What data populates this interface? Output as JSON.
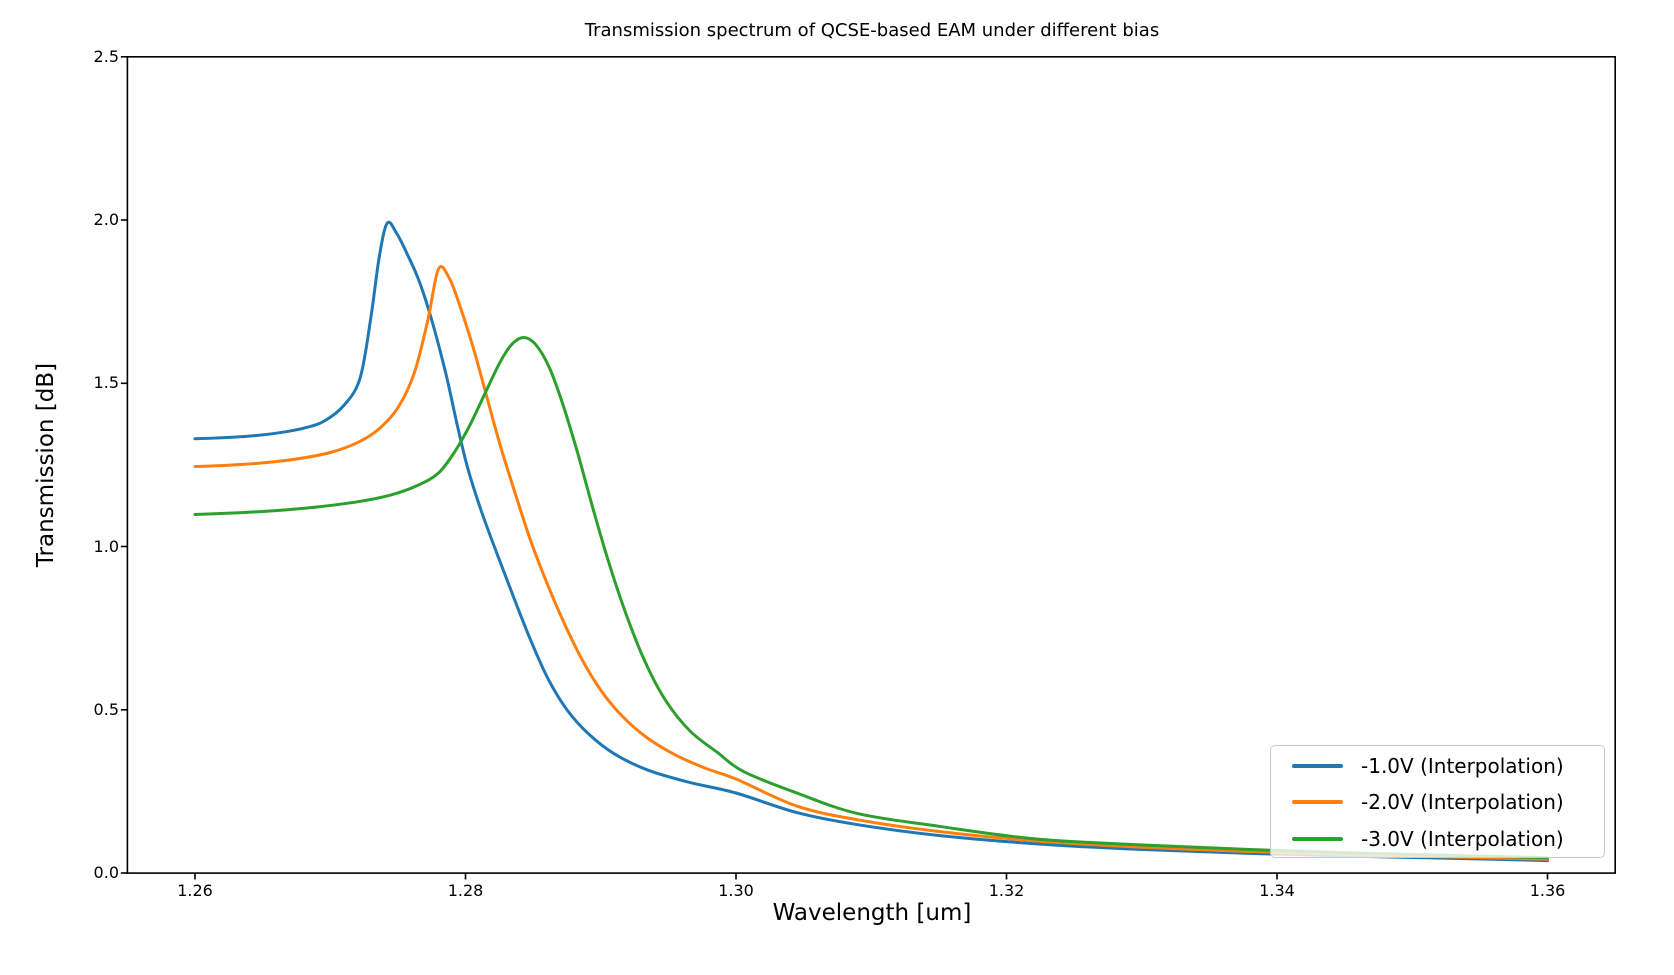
{
  "title": "Transmission spectrum of QCSE-based EAM under different bias",
  "axes": {
    "xlabel": "Wavelength [um]",
    "ylabel": "Transmission [dB]",
    "x_tick_labels": [
      "1.26",
      "1.28",
      "1.30",
      "1.32",
      "1.34",
      "1.36"
    ],
    "x_tick_values": [
      1.26,
      1.28,
      1.3,
      1.32,
      1.34,
      1.36
    ],
    "y_tick_labels": [
      "0.0",
      "0.5",
      "1.0",
      "1.5",
      "2.0",
      "2.5"
    ],
    "y_tick_values": [
      0.0,
      0.5,
      1.0,
      1.5,
      2.0,
      2.5
    ]
  },
  "chart_data": {
    "type": "line",
    "title": "Transmission spectrum of QCSE-based EAM under different bias",
    "xlabel": "Wavelength [um]",
    "ylabel": "Transmission [dB]",
    "xlim": [
      1.255,
      1.365
    ],
    "ylim": [
      0.0,
      2.5
    ],
    "grid": false,
    "legend_position": "lower right",
    "series": [
      {
        "name": "-1.0V (Interpolation)",
        "color": "#1f77b4",
        "peak": {
          "wavelength_um": 1.2742,
          "transmission_db": 1.99
        },
        "points": [
          [
            1.26,
            1.33
          ],
          [
            1.262,
            1.333
          ],
          [
            1.264,
            1.338
          ],
          [
            1.266,
            1.347
          ],
          [
            1.268,
            1.362
          ],
          [
            1.2695,
            1.383
          ],
          [
            1.271,
            1.432
          ],
          [
            1.2722,
            1.515
          ],
          [
            1.273,
            1.7
          ],
          [
            1.2736,
            1.88
          ],
          [
            1.2742,
            1.99
          ],
          [
            1.2749,
            1.96
          ],
          [
            1.2757,
            1.895
          ],
          [
            1.2766,
            1.81
          ],
          [
            1.2776,
            1.68
          ],
          [
            1.2786,
            1.52
          ],
          [
            1.2794,
            1.37
          ],
          [
            1.2802,
            1.235
          ],
          [
            1.2812,
            1.105
          ],
          [
            1.2824,
            0.97
          ],
          [
            1.2836,
            0.84
          ],
          [
            1.2848,
            0.715
          ],
          [
            1.2861,
            0.595
          ],
          [
            1.2875,
            0.5
          ],
          [
            1.289,
            0.43
          ],
          [
            1.291,
            0.365
          ],
          [
            1.2935,
            0.315
          ],
          [
            1.2965,
            0.278
          ],
          [
            1.3,
            0.245
          ],
          [
            1.3045,
            0.185
          ],
          [
            1.309,
            0.148
          ],
          [
            1.315,
            0.115
          ],
          [
            1.322,
            0.09
          ],
          [
            1.33,
            0.072
          ],
          [
            1.338,
            0.06
          ],
          [
            1.346,
            0.051
          ],
          [
            1.354,
            0.044
          ],
          [
            1.36,
            0.038
          ]
        ]
      },
      {
        "name": "-2.0V (Interpolation)",
        "color": "#ff7f0e",
        "peak": {
          "wavelength_um": 1.278,
          "transmission_db": 1.85
        },
        "points": [
          [
            1.26,
            1.245
          ],
          [
            1.2625,
            1.249
          ],
          [
            1.265,
            1.256
          ],
          [
            1.2675,
            1.268
          ],
          [
            1.27,
            1.288
          ],
          [
            1.272,
            1.318
          ],
          [
            1.2736,
            1.36
          ],
          [
            1.275,
            1.425
          ],
          [
            1.2762,
            1.53
          ],
          [
            1.2772,
            1.69
          ],
          [
            1.278,
            1.85
          ],
          [
            1.2788,
            1.822
          ],
          [
            1.2796,
            1.735
          ],
          [
            1.2806,
            1.605
          ],
          [
            1.2816,
            1.455
          ],
          [
            1.2826,
            1.305
          ],
          [
            1.2837,
            1.16
          ],
          [
            1.2848,
            1.02
          ],
          [
            1.286,
            0.89
          ],
          [
            1.2873,
            0.765
          ],
          [
            1.2886,
            0.655
          ],
          [
            1.29,
            0.56
          ],
          [
            1.2916,
            0.48
          ],
          [
            1.2934,
            0.415
          ],
          [
            1.2955,
            0.362
          ],
          [
            1.2978,
            0.32
          ],
          [
            1.3,
            0.288
          ],
          [
            1.3045,
            0.205
          ],
          [
            1.309,
            0.163
          ],
          [
            1.315,
            0.127
          ],
          [
            1.322,
            0.099
          ],
          [
            1.33,
            0.079
          ],
          [
            1.338,
            0.066
          ],
          [
            1.346,
            0.056
          ],
          [
            1.354,
            0.048
          ],
          [
            1.36,
            0.042
          ]
        ]
      },
      {
        "name": "-3.0V (Interpolation)",
        "color": "#2ca02c",
        "peak": {
          "wavelength_um": 1.2843,
          "transmission_db": 1.64
        },
        "points": [
          [
            1.26,
            1.098
          ],
          [
            1.263,
            1.103
          ],
          [
            1.266,
            1.11
          ],
          [
            1.269,
            1.121
          ],
          [
            1.272,
            1.137
          ],
          [
            1.2745,
            1.158
          ],
          [
            1.2765,
            1.188
          ],
          [
            1.278,
            1.225
          ],
          [
            1.2792,
            1.29
          ],
          [
            1.2803,
            1.37
          ],
          [
            1.2814,
            1.465
          ],
          [
            1.2825,
            1.56
          ],
          [
            1.2834,
            1.618
          ],
          [
            1.2843,
            1.64
          ],
          [
            1.2852,
            1.618
          ],
          [
            1.2862,
            1.548
          ],
          [
            1.2872,
            1.435
          ],
          [
            1.2883,
            1.285
          ],
          [
            1.2894,
            1.12
          ],
          [
            1.2906,
            0.95
          ],
          [
            1.2919,
            0.79
          ],
          [
            1.2933,
            0.645
          ],
          [
            1.2948,
            0.528
          ],
          [
            1.2966,
            0.435
          ],
          [
            1.2986,
            0.37
          ],
          [
            1.3006,
            0.31
          ],
          [
            1.3045,
            0.245
          ],
          [
            1.309,
            0.182
          ],
          [
            1.315,
            0.143
          ],
          [
            1.322,
            0.105
          ],
          [
            1.33,
            0.086
          ],
          [
            1.338,
            0.072
          ],
          [
            1.346,
            0.061
          ],
          [
            1.354,
            0.053
          ],
          [
            1.36,
            0.047
          ]
        ]
      }
    ]
  },
  "legend": {
    "items": [
      {
        "label": "-1.0V (Interpolation)",
        "color": "#1f77b4"
      },
      {
        "label": "-2.0V (Interpolation)",
        "color": "#ff7f0e"
      },
      {
        "label": "-3.0V (Interpolation)",
        "color": "#2ca02c"
      }
    ]
  }
}
